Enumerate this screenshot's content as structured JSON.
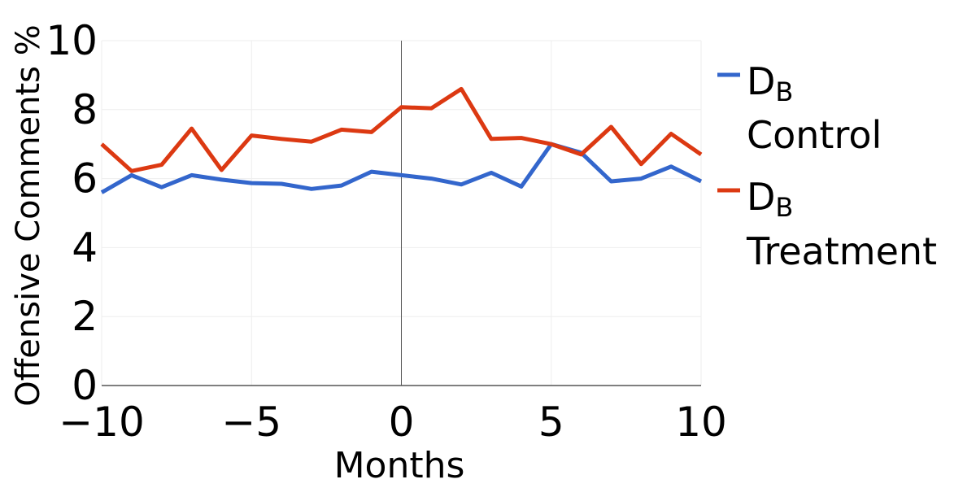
{
  "chart_data": {
    "type": "line",
    "title": "",
    "xlabel": "Months",
    "ylabel": "Offensive Comments %",
    "xlim": [
      -10,
      10
    ],
    "ylim": [
      0,
      10
    ],
    "xticks": [
      -10,
      -5,
      0,
      5,
      10
    ],
    "yticks": [
      0,
      2,
      4,
      6,
      8,
      10
    ],
    "xtick_labels": [
      "−10",
      "−5",
      "0",
      "5",
      "10"
    ],
    "ytick_labels": [
      "0",
      "2",
      "4",
      "6",
      "8",
      "10"
    ],
    "grid": true,
    "legend_position": "right",
    "reference_line_x": 0,
    "x": [
      -10,
      -9,
      -8,
      -7,
      -6,
      -5,
      -4,
      -3,
      -2,
      -1,
      0,
      1,
      2,
      3,
      4,
      5,
      6,
      7,
      8,
      9,
      10
    ],
    "series": [
      {
        "name_main": "D",
        "name_sub": "B",
        "name_line2": "Control",
        "color": "#3366cc",
        "values": [
          5.6,
          6.1,
          5.75,
          6.1,
          5.97,
          5.87,
          5.85,
          5.7,
          5.8,
          6.2,
          6.1,
          6.0,
          5.83,
          6.17,
          5.77,
          7.0,
          6.75,
          5.92,
          6.0,
          6.35,
          5.92
        ]
      },
      {
        "name_main": "D",
        "name_sub": "B",
        "name_line2": "Treatment",
        "color": "#dc3912",
        "values": [
          7.0,
          6.22,
          6.4,
          7.45,
          6.25,
          7.25,
          7.15,
          7.07,
          7.42,
          7.35,
          8.07,
          8.04,
          8.6,
          7.15,
          7.18,
          7.0,
          6.7,
          7.5,
          6.42,
          7.3,
          6.7
        ]
      }
    ]
  }
}
